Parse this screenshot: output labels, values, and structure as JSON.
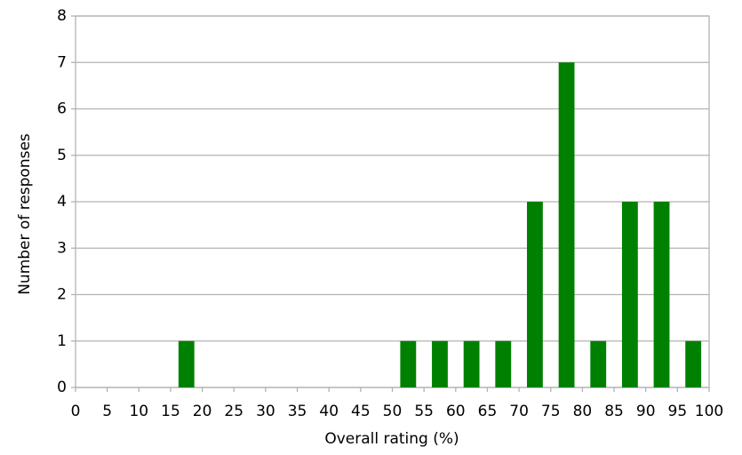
{
  "chart_data": {
    "type": "histogram",
    "x_label": "Overall rating (%)",
    "y_label": "Number of responses",
    "bins": [
      0,
      5,
      10,
      15,
      20,
      25,
      30,
      35,
      40,
      45,
      50,
      55,
      60,
      65,
      70,
      75,
      80,
      85,
      90,
      95,
      100
    ],
    "values": [
      0,
      0,
      0,
      1,
      0,
      0,
      0,
      0,
      0,
      0,
      1,
      1,
      1,
      1,
      4,
      7,
      1,
      4,
      4,
      1
    ],
    "color": "#008000",
    "xlim": [
      0,
      100
    ],
    "xticks": [
      0,
      5,
      10,
      15,
      20,
      25,
      30,
      35,
      40,
      45,
      50,
      55,
      60,
      65,
      70,
      75,
      80,
      85,
      90,
      95,
      100
    ],
    "ylim": [
      0,
      8
    ],
    "yticks": [
      0,
      1,
      2,
      3,
      4,
      5,
      6,
      7,
      8
    ],
    "grid": true
  }
}
